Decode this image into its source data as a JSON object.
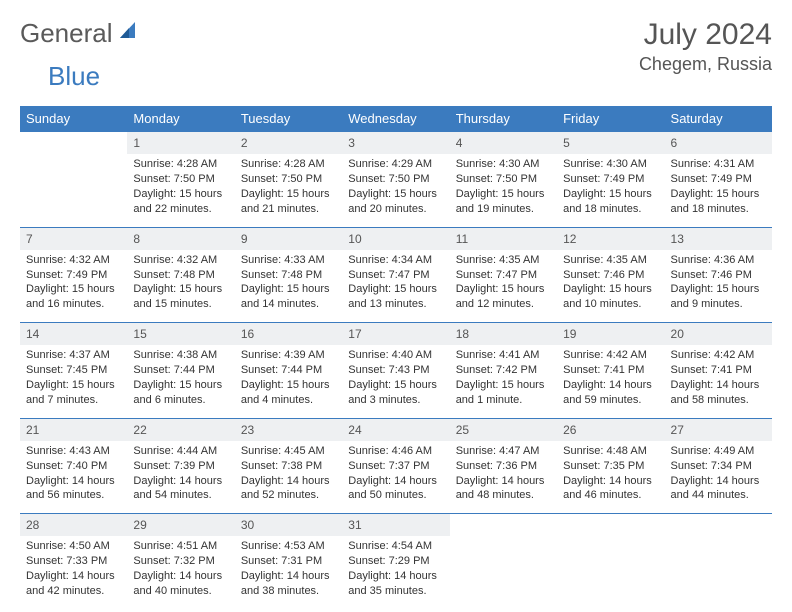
{
  "logo": {
    "general": "General",
    "blue": "Blue"
  },
  "title": "July 2024",
  "location": "Chegem, Russia",
  "colors": {
    "header_bg": "#3b7bbf",
    "header_text": "#ffffff",
    "daynum_bg": "#eef0f2",
    "border": "#3b7bbf",
    "text": "#333333",
    "background": "#ffffff"
  },
  "weekdays": [
    "Sunday",
    "Monday",
    "Tuesday",
    "Wednesday",
    "Thursday",
    "Friday",
    "Saturday"
  ],
  "weeks": [
    [
      {
        "n": "",
        "sr": "",
        "ss": "",
        "dl": ""
      },
      {
        "n": "1",
        "sr": "Sunrise: 4:28 AM",
        "ss": "Sunset: 7:50 PM",
        "dl": "Daylight: 15 hours and 22 minutes."
      },
      {
        "n": "2",
        "sr": "Sunrise: 4:28 AM",
        "ss": "Sunset: 7:50 PM",
        "dl": "Daylight: 15 hours and 21 minutes."
      },
      {
        "n": "3",
        "sr": "Sunrise: 4:29 AM",
        "ss": "Sunset: 7:50 PM",
        "dl": "Daylight: 15 hours and 20 minutes."
      },
      {
        "n": "4",
        "sr": "Sunrise: 4:30 AM",
        "ss": "Sunset: 7:50 PM",
        "dl": "Daylight: 15 hours and 19 minutes."
      },
      {
        "n": "5",
        "sr": "Sunrise: 4:30 AM",
        "ss": "Sunset: 7:49 PM",
        "dl": "Daylight: 15 hours and 18 minutes."
      },
      {
        "n": "6",
        "sr": "Sunrise: 4:31 AM",
        "ss": "Sunset: 7:49 PM",
        "dl": "Daylight: 15 hours and 18 minutes."
      }
    ],
    [
      {
        "n": "7",
        "sr": "Sunrise: 4:32 AM",
        "ss": "Sunset: 7:49 PM",
        "dl": "Daylight: 15 hours and 16 minutes."
      },
      {
        "n": "8",
        "sr": "Sunrise: 4:32 AM",
        "ss": "Sunset: 7:48 PM",
        "dl": "Daylight: 15 hours and 15 minutes."
      },
      {
        "n": "9",
        "sr": "Sunrise: 4:33 AM",
        "ss": "Sunset: 7:48 PM",
        "dl": "Daylight: 15 hours and 14 minutes."
      },
      {
        "n": "10",
        "sr": "Sunrise: 4:34 AM",
        "ss": "Sunset: 7:47 PM",
        "dl": "Daylight: 15 hours and 13 minutes."
      },
      {
        "n": "11",
        "sr": "Sunrise: 4:35 AM",
        "ss": "Sunset: 7:47 PM",
        "dl": "Daylight: 15 hours and 12 minutes."
      },
      {
        "n": "12",
        "sr": "Sunrise: 4:35 AM",
        "ss": "Sunset: 7:46 PM",
        "dl": "Daylight: 15 hours and 10 minutes."
      },
      {
        "n": "13",
        "sr": "Sunrise: 4:36 AM",
        "ss": "Sunset: 7:46 PM",
        "dl": "Daylight: 15 hours and 9 minutes."
      }
    ],
    [
      {
        "n": "14",
        "sr": "Sunrise: 4:37 AM",
        "ss": "Sunset: 7:45 PM",
        "dl": "Daylight: 15 hours and 7 minutes."
      },
      {
        "n": "15",
        "sr": "Sunrise: 4:38 AM",
        "ss": "Sunset: 7:44 PM",
        "dl": "Daylight: 15 hours and 6 minutes."
      },
      {
        "n": "16",
        "sr": "Sunrise: 4:39 AM",
        "ss": "Sunset: 7:44 PM",
        "dl": "Daylight: 15 hours and 4 minutes."
      },
      {
        "n": "17",
        "sr": "Sunrise: 4:40 AM",
        "ss": "Sunset: 7:43 PM",
        "dl": "Daylight: 15 hours and 3 minutes."
      },
      {
        "n": "18",
        "sr": "Sunrise: 4:41 AM",
        "ss": "Sunset: 7:42 PM",
        "dl": "Daylight: 15 hours and 1 minute."
      },
      {
        "n": "19",
        "sr": "Sunrise: 4:42 AM",
        "ss": "Sunset: 7:41 PM",
        "dl": "Daylight: 14 hours and 59 minutes."
      },
      {
        "n": "20",
        "sr": "Sunrise: 4:42 AM",
        "ss": "Sunset: 7:41 PM",
        "dl": "Daylight: 14 hours and 58 minutes."
      }
    ],
    [
      {
        "n": "21",
        "sr": "Sunrise: 4:43 AM",
        "ss": "Sunset: 7:40 PM",
        "dl": "Daylight: 14 hours and 56 minutes."
      },
      {
        "n": "22",
        "sr": "Sunrise: 4:44 AM",
        "ss": "Sunset: 7:39 PM",
        "dl": "Daylight: 14 hours and 54 minutes."
      },
      {
        "n": "23",
        "sr": "Sunrise: 4:45 AM",
        "ss": "Sunset: 7:38 PM",
        "dl": "Daylight: 14 hours and 52 minutes."
      },
      {
        "n": "24",
        "sr": "Sunrise: 4:46 AM",
        "ss": "Sunset: 7:37 PM",
        "dl": "Daylight: 14 hours and 50 minutes."
      },
      {
        "n": "25",
        "sr": "Sunrise: 4:47 AM",
        "ss": "Sunset: 7:36 PM",
        "dl": "Daylight: 14 hours and 48 minutes."
      },
      {
        "n": "26",
        "sr": "Sunrise: 4:48 AM",
        "ss": "Sunset: 7:35 PM",
        "dl": "Daylight: 14 hours and 46 minutes."
      },
      {
        "n": "27",
        "sr": "Sunrise: 4:49 AM",
        "ss": "Sunset: 7:34 PM",
        "dl": "Daylight: 14 hours and 44 minutes."
      }
    ],
    [
      {
        "n": "28",
        "sr": "Sunrise: 4:50 AM",
        "ss": "Sunset: 7:33 PM",
        "dl": "Daylight: 14 hours and 42 minutes."
      },
      {
        "n": "29",
        "sr": "Sunrise: 4:51 AM",
        "ss": "Sunset: 7:32 PM",
        "dl": "Daylight: 14 hours and 40 minutes."
      },
      {
        "n": "30",
        "sr": "Sunrise: 4:53 AM",
        "ss": "Sunset: 7:31 PM",
        "dl": "Daylight: 14 hours and 38 minutes."
      },
      {
        "n": "31",
        "sr": "Sunrise: 4:54 AM",
        "ss": "Sunset: 7:29 PM",
        "dl": "Daylight: 14 hours and 35 minutes."
      },
      {
        "n": "",
        "sr": "",
        "ss": "",
        "dl": ""
      },
      {
        "n": "",
        "sr": "",
        "ss": "",
        "dl": ""
      },
      {
        "n": "",
        "sr": "",
        "ss": "",
        "dl": ""
      }
    ]
  ]
}
